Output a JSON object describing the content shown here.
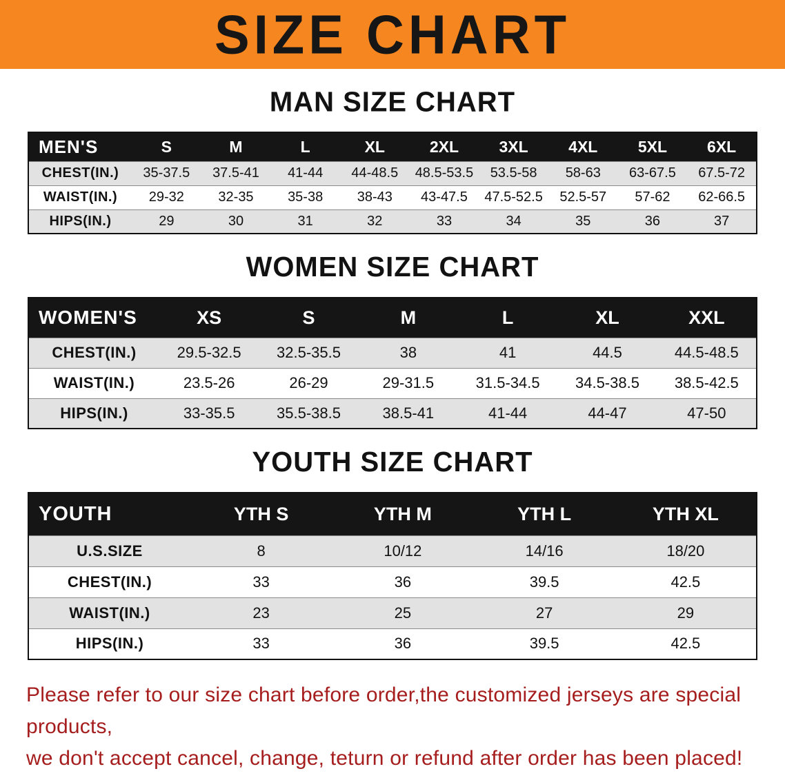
{
  "banner_title": "SIZE CHART",
  "men": {
    "heading": "MAN SIZE CHART",
    "header": [
      "MEN'S",
      "S",
      "M",
      "L",
      "XL",
      "2XL",
      "3XL",
      "4XL",
      "5XL",
      "6XL"
    ],
    "rows": [
      [
        "CHEST(IN.)",
        "35-37.5",
        "37.5-41",
        "41-44",
        "44-48.5",
        "48.5-53.5",
        "53.5-58",
        "58-63",
        "63-67.5",
        "67.5-72"
      ],
      [
        "WAIST(IN.)",
        "29-32",
        "32-35",
        "35-38",
        "38-43",
        "43-47.5",
        "47.5-52.5",
        "52.5-57",
        "57-62",
        "62-66.5"
      ],
      [
        "HIPS(IN.)",
        "29",
        "30",
        "31",
        "32",
        "33",
        "34",
        "35",
        "36",
        "37"
      ]
    ]
  },
  "women": {
    "heading": "WOMEN SIZE CHART",
    "header": [
      "WOMEN'S",
      "XS",
      "S",
      "M",
      "L",
      "XL",
      "XXL"
    ],
    "rows": [
      [
        "CHEST(IN.)",
        "29.5-32.5",
        "32.5-35.5",
        "38",
        "41",
        "44.5",
        "44.5-48.5"
      ],
      [
        "WAIST(IN.)",
        "23.5-26",
        "26-29",
        "29-31.5",
        "31.5-34.5",
        "34.5-38.5",
        "38.5-42.5"
      ],
      [
        "HIPS(IN.)",
        "33-35.5",
        "35.5-38.5",
        "38.5-41",
        "41-44",
        "44-47",
        "47-50"
      ]
    ]
  },
  "youth": {
    "heading": "YOUTH SIZE CHART",
    "header": [
      "YOUTH",
      "YTH S",
      "YTH M",
      "YTH L",
      "YTH XL"
    ],
    "rows": [
      [
        "U.S.SIZE",
        "8",
        "10/12",
        "14/16",
        "18/20"
      ],
      [
        "CHEST(IN.)",
        "33",
        "36",
        "39.5",
        "42.5"
      ],
      [
        "WAIST(IN.)",
        "23",
        "25",
        "27",
        "29"
      ],
      [
        "HIPS(IN.)",
        "33",
        "36",
        "39.5",
        "42.5"
      ]
    ]
  },
  "footer": {
    "line1": "Please refer to our size chart before order,the customized jerseys are special products,",
    "line2": "we don't accept cancel, change, teturn or refund after order has been placed!"
  },
  "colors": {
    "banner_orange": "#f6861f",
    "header_black": "#151515",
    "stripe_gray": "#e2e2e2",
    "notice_red": "#a61d1d"
  }
}
